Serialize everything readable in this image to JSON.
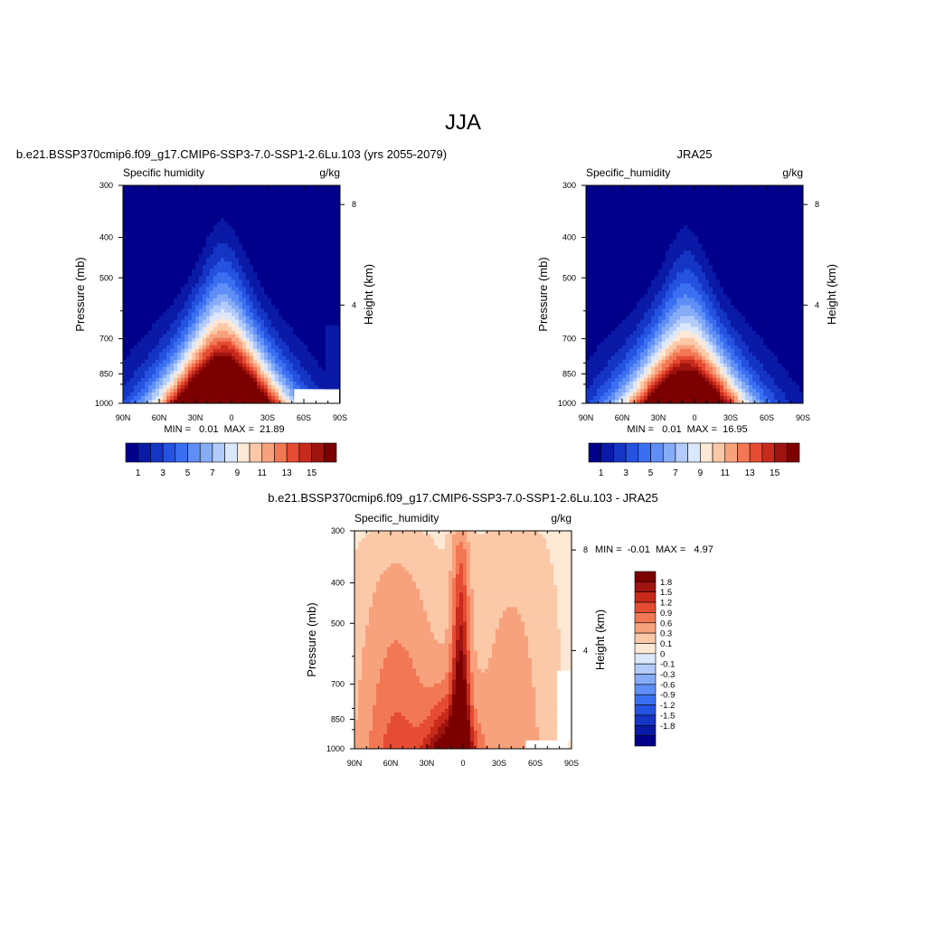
{
  "page_title": "JJA",
  "color_scale": {
    "absolute_colors": [
      "#00008b",
      "#0a1aa6",
      "#1535c4",
      "#2552e0",
      "#3b6ff2",
      "#5e8ef6",
      "#86acf8",
      "#b3cbfa",
      "#dbe7fc",
      "#fde8d6",
      "#fbc8a8",
      "#f7a27c",
      "#f27855",
      "#e54c33",
      "#c82a1b",
      "#a01410",
      "#7d0000"
    ],
    "difference_colors": [
      "#7d0000",
      "#a01410",
      "#c82a1b",
      "#e54c33",
      "#f27855",
      "#f7a27c",
      "#fbc8a8",
      "#fde8d6",
      "#dbe7fc",
      "#b3cbfa",
      "#86acf8",
      "#5e8ef6",
      "#3b6ff2",
      "#2552e0",
      "#1535c4",
      "#0a1aa6",
      "#00008b"
    ]
  },
  "chart_data": [
    {
      "type": "heatmap",
      "title": "b.e21.BSSP370cmip6.f09_g17.CMIP6-SSP3-7.0-SSP1-2.6Lu.103 (yrs 2055-2079)",
      "left_label": "Specific humidity",
      "right_label": "g/kg",
      "ylabel": "Pressure (mb)",
      "ylabel_right": "Height (km)",
      "x_ticks": [
        "90N",
        "60N",
        "30N",
        "0",
        "30S",
        "60S",
        "90S"
      ],
      "y_ticks": [
        "300",
        "400",
        "500",
        "700",
        "850",
        "1000"
      ],
      "height_ticks": [
        "8",
        "4"
      ],
      "x_range": [
        90,
        -90
      ],
      "y_range_mb": [
        300,
        1000
      ],
      "y_scale": "log",
      "stats": "MIN =   0.01  MAX =  21.89",
      "legend_labels": [
        "1",
        "3",
        "5",
        "7",
        "9",
        "11",
        "13",
        "15"
      ],
      "legend_position": "bottom",
      "field": {
        "peak": 21.89,
        "center_lat": 7,
        "surface_width": 34,
        "missing_block": "60S-90S near surface"
      }
    },
    {
      "type": "heatmap",
      "title": "JRA25",
      "left_label": "Specific_humidity",
      "right_label": "g/kg",
      "ylabel": "Pressure (mb)",
      "ylabel_right": "Height (km)",
      "x_ticks": [
        "90N",
        "60N",
        "30N",
        "0",
        "30S",
        "60S",
        "90S"
      ],
      "y_ticks": [
        "300",
        "400",
        "500",
        "700",
        "850",
        "1000"
      ],
      "height_ticks": [
        "8",
        "4"
      ],
      "x_range": [
        90,
        -90
      ],
      "y_range_mb": [
        300,
        1000
      ],
      "y_scale": "log",
      "stats": "MIN =   0.01  MAX =  16.95",
      "legend_labels": [
        "1",
        "3",
        "5",
        "7",
        "9",
        "11",
        "13",
        "15"
      ],
      "legend_position": "bottom",
      "field": {
        "peak": 16.95,
        "center_lat": 7,
        "surface_width": 32
      }
    },
    {
      "type": "heatmap",
      "title": "b.e21.BSSP370cmip6.f09_g17.CMIP6-SSP3-7.0-SSP1-2.6Lu.103 - JRA25",
      "left_label": "Specific_humidity",
      "right_label": "g/kg",
      "ylabel": "Pressure (mb)",
      "ylabel_right": "Height (km)",
      "x_ticks": [
        "90N",
        "60N",
        "30N",
        "0",
        "30S",
        "60S",
        "90S"
      ],
      "y_ticks": [
        "300",
        "400",
        "500",
        "700",
        "850",
        "1000"
      ],
      "height_ticks": [
        "8",
        "4"
      ],
      "x_range": [
        90,
        -90
      ],
      "y_range_mb": [
        300,
        1000
      ],
      "y_scale": "log",
      "stats": "MIN =  -0.01  MAX =   4.97",
      "legend_labels": [
        "1.8",
        "1.5",
        "1.2",
        "0.9",
        "0.6",
        "0.3",
        "0.1",
        "0",
        "-0.1",
        "-0.3",
        "-0.6",
        "-0.9",
        "-1.2",
        "-1.5",
        "-1.8"
      ],
      "legend_position": "right",
      "field": {
        "peak": 4.97,
        "min": -0.01,
        "center_lat": 2
      }
    }
  ]
}
